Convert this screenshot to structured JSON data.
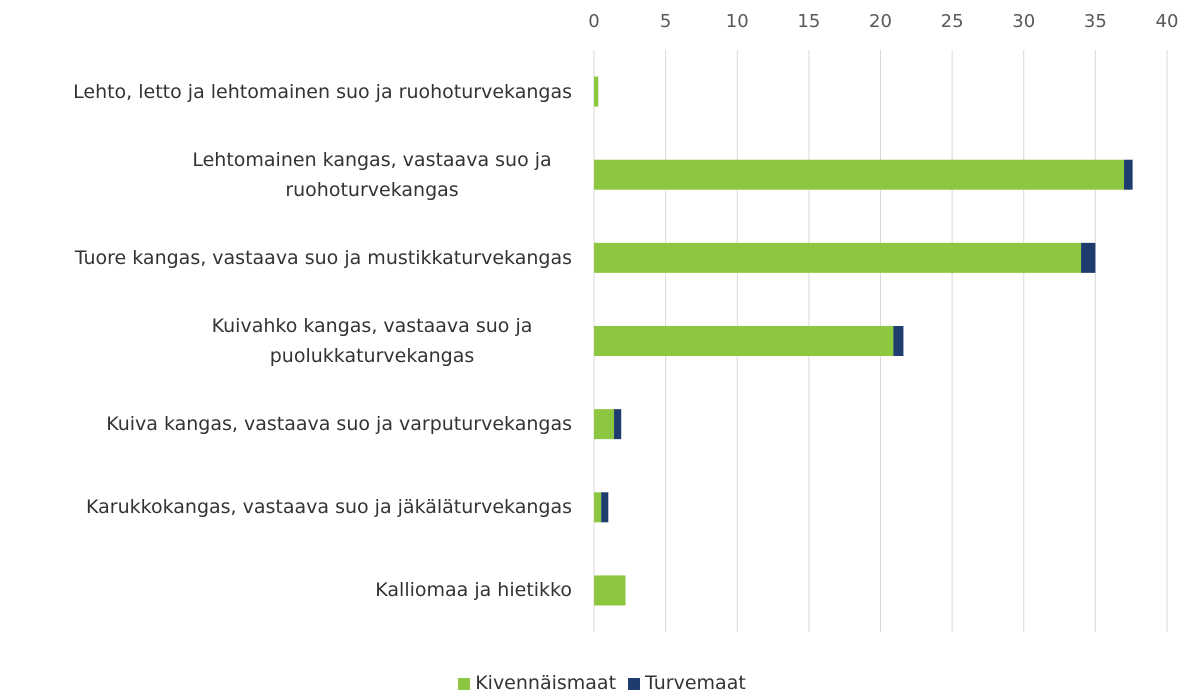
{
  "chart_data": {
    "type": "stacked-barh",
    "categories": [
      "Lehto, letto ja lehtomainen suo ja ruohoturvekangas",
      "Lehtomainen kangas, vastaava suo ja ruohoturvekangas",
      "Tuore kangas, vastaava suo ja mustikkaturvekangas",
      "Kuivahko kangas, vastaava suo ja puolukkaturvekangas",
      "Kuiva kangas, vastaava suo ja varputurvekangas",
      "Karukkokangas, vastaava suo ja jäkäläturvekangas",
      "Kalliomaa ja hietikko"
    ],
    "series": [
      {
        "name": "Kivennäismaat",
        "color": "#8dc63f",
        "values": [
          0.3,
          37.0,
          34.0,
          20.9,
          1.4,
          0.5,
          2.2
        ]
      },
      {
        "name": "Turvemaat",
        "color": "#1f3c6e",
        "values": [
          0,
          0.6,
          1.0,
          0.7,
          0.5,
          0.5,
          0
        ]
      }
    ],
    "xlim": [
      0,
      40
    ],
    "xticks": [
      0,
      5,
      10,
      15,
      20,
      25,
      30,
      35,
      40
    ],
    "grid": true,
    "legend": "bottom"
  }
}
